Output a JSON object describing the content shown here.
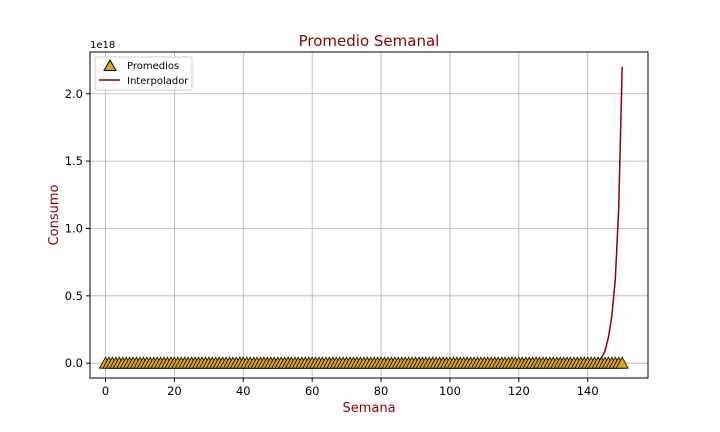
{
  "chart_data": {
    "type": "line",
    "title": "Promedio Semanal",
    "xlabel": "Semana",
    "ylabel": "Consumo",
    "y_offset_label": "1e18",
    "xlim": [
      -4.5,
      157.5
    ],
    "ylim": [
      -0.11,
      2.31
    ],
    "xticks": [
      0,
      20,
      40,
      60,
      80,
      100,
      120,
      140
    ],
    "yticks": [
      0.0,
      0.5,
      1.0,
      1.5,
      2.0
    ],
    "ytick_labels": [
      "0.0",
      "0.5",
      "1.0",
      "1.5",
      "2.0"
    ],
    "grid": true,
    "legend_position": "upper-left",
    "series": [
      {
        "name": "Promedios",
        "kind": "scatter",
        "marker": "triangle",
        "x_start": 0,
        "x_end": 150,
        "x_step": 1,
        "y_constant": 0.0
      },
      {
        "name": "Interpolador",
        "kind": "line",
        "x": [
          0,
          140,
          141,
          142,
          143,
          144,
          145,
          146,
          147,
          148,
          149,
          150
        ],
        "y": [
          0.0,
          0.0,
          0.003,
          0.008,
          0.018,
          0.04,
          0.09,
          0.19,
          0.35,
          0.62,
          1.15,
          2.2
        ]
      }
    ],
    "colors": {
      "title": "#8b0000",
      "axis_label": "#8b0000",
      "line": "#8b0000",
      "marker_fill": "#daa520",
      "marker_edge": "#000000",
      "grid": "#b0b0b0"
    }
  }
}
